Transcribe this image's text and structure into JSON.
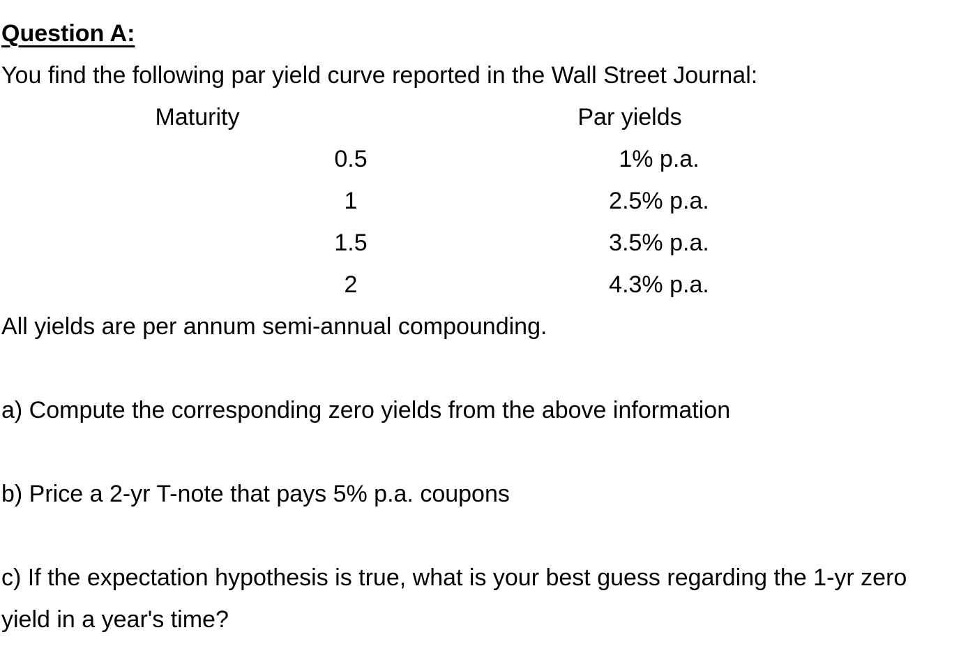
{
  "question": {
    "title": "Question A:",
    "intro": "You find the following par yield curve reported in the Wall Street Journal:",
    "table": {
      "headers": [
        "Maturity",
        "Par yields"
      ],
      "rows": [
        [
          "0.5",
          "1% p.a."
        ],
        [
          "1",
          "2.5% p.a."
        ],
        [
          "1.5",
          "3.5% p.a."
        ],
        [
          "2",
          "4.3% p.a."
        ]
      ]
    },
    "note": "All yields are per annum semi-annual compounding.",
    "parts": [
      "a) Compute the corresponding zero yields from the above information",
      "b) Price a 2-yr T-note that pays 5% p.a. coupons",
      "c) If the expectation hypothesis is true, what is your best guess regarding the 1-yr zero yield in a year's time?"
    ]
  }
}
